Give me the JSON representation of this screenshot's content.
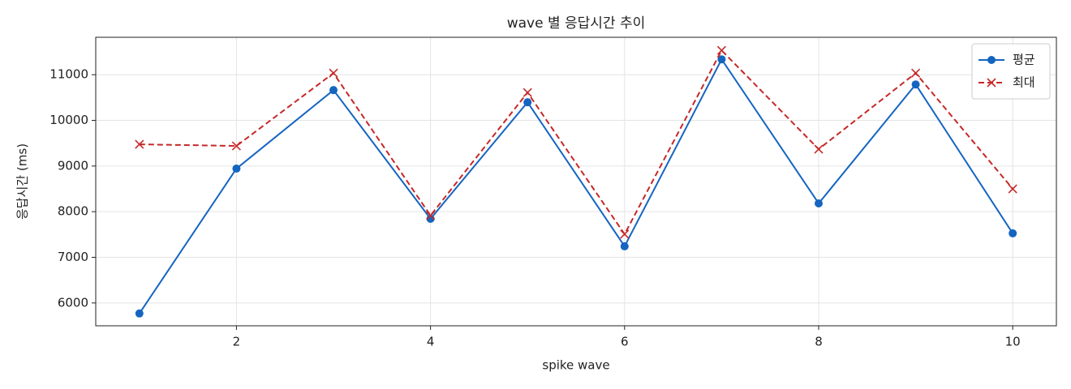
{
  "chart_data": {
    "type": "line",
    "title": "wave 별 응답시간 추이",
    "xlabel": "spike wave",
    "ylabel": "응답시간 (ms)",
    "x": [
      1,
      2,
      3,
      4,
      5,
      6,
      7,
      8,
      9,
      10
    ],
    "series": [
      {
        "name": "평균",
        "color": "#1565c0",
        "marker": "o",
        "linestyle": "solid",
        "values": [
          5770,
          8943,
          10663,
          7844,
          10397,
          7241,
          11337,
          8181,
          10787,
          7525
        ]
      },
      {
        "name": "최대",
        "color": "#c62828",
        "marker": "x",
        "linestyle": "dashed",
        "values": [
          9475,
          9440,
          11035,
          7915,
          10610,
          7507,
          11532,
          9369,
          11035,
          8500
        ]
      }
    ],
    "xlim": [
      0.55,
      10.45
    ],
    "xticks": [
      2,
      4,
      6,
      8,
      10
    ],
    "ylim": [
      5500,
      11820
    ],
    "yticks": [
      6000,
      7000,
      8000,
      9000,
      10000,
      11000
    ],
    "grid": true,
    "legend": "upper right"
  }
}
